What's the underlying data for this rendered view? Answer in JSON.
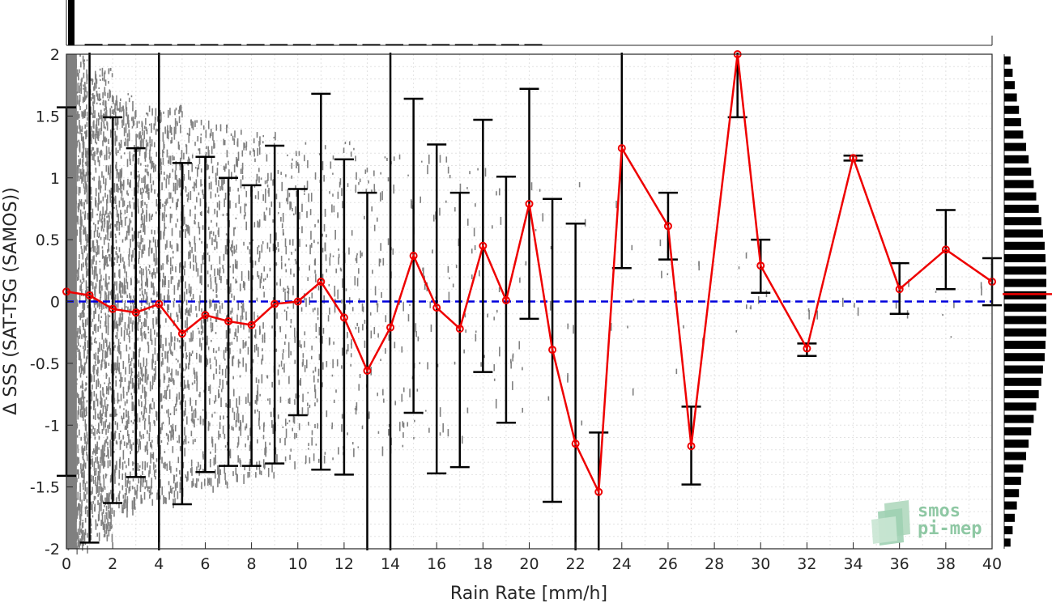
{
  "chart_data": {
    "type": "scatter",
    "xlabel": "Rain Rate [mm/h]",
    "ylabel": "Δ SSS (SAT-TSG (SAMOS))",
    "xlim": [
      0,
      40
    ],
    "ylim": [
      -2,
      2
    ],
    "x_ticks": [
      0,
      2,
      4,
      6,
      8,
      10,
      12,
      14,
      16,
      18,
      20,
      22,
      24,
      26,
      28,
      30,
      32,
      34,
      36,
      38,
      40
    ],
    "y_ticks": [
      2,
      1.5,
      1,
      0.5,
      0,
      -0.5,
      -1,
      -1.5,
      -2
    ],
    "y_tick_labels": [
      "2",
      "1.5",
      "1",
      "0.5",
      "0",
      "-0.5",
      "-1",
      "-1.5",
      "-2"
    ],
    "grid": true,
    "zero_line": {
      "y": 0,
      "color": "#0000dd",
      "style": "dashed"
    },
    "mean_series": {
      "color": "#ee0000",
      "x": [
        0,
        1,
        2,
        3,
        4,
        5,
        6,
        7,
        8,
        9,
        10,
        11,
        12,
        13,
        14,
        15,
        16,
        17,
        18,
        19,
        20,
        21,
        22,
        23,
        24,
        26,
        27,
        29,
        30,
        32,
        34,
        36,
        38,
        40
      ],
      "y": [
        0.08,
        0.05,
        -0.06,
        -0.09,
        -0.02,
        -0.26,
        -0.11,
        -0.16,
        -0.19,
        -0.02,
        0.0,
        0.16,
        -0.13,
        -0.56,
        -0.21,
        0.37,
        -0.05,
        -0.22,
        0.45,
        0.01,
        0.79,
        -0.39,
        -1.15,
        -1.54,
        1.24,
        0.61,
        -1.17,
        2.0,
        0.29,
        -0.38,
        1.16,
        0.1,
        0.42,
        0.16
      ]
    },
    "error_bars": {
      "color": "#000000",
      "x": [
        0,
        1,
        2,
        3,
        4,
        5,
        6,
        7,
        8,
        9,
        10,
        11,
        12,
        13,
        14,
        15,
        16,
        17,
        18,
        19,
        20,
        21,
        22,
        23,
        24,
        26,
        27,
        29,
        30,
        32,
        34,
        36,
        38,
        40
      ],
      "upper": [
        1.57,
        2.05,
        1.49,
        1.24,
        2.05,
        1.12,
        1.17,
        1.0,
        0.94,
        1.26,
        0.91,
        1.68,
        1.15,
        0.88,
        2.05,
        1.64,
        1.27,
        0.88,
        1.47,
        1.01,
        1.72,
        0.83,
        0.63,
        -1.06,
        2.05,
        0.88,
        -0.85,
        2.05,
        0.5,
        -0.34,
        1.18,
        0.31,
        0.74,
        0.35
      ],
      "lower": [
        -1.41,
        -1.95,
        -1.63,
        -1.42,
        -2.05,
        -1.64,
        -1.38,
        -1.33,
        -1.33,
        -1.31,
        -0.92,
        -1.36,
        -1.4,
        -2.05,
        -2.05,
        -0.9,
        -1.39,
        -1.34,
        -0.57,
        -0.98,
        -0.14,
        -1.62,
        -2.05,
        -2.05,
        0.27,
        0.34,
        -1.48,
        1.49,
        0.07,
        -0.44,
        1.14,
        -0.1,
        0.1,
        -0.03
      ]
    },
    "scatter_color": "#808080",
    "scatter_density": [
      {
        "x": 0.4,
        "spread": 2.0,
        "n": 900
      },
      {
        "x": 1.5,
        "spread": 1.9,
        "n": 700
      },
      {
        "x": 2.5,
        "spread": 1.7,
        "n": 500
      },
      {
        "x": 3.5,
        "spread": 1.6,
        "n": 420
      },
      {
        "x": 4.5,
        "spread": 1.6,
        "n": 330
      },
      {
        "x": 5.5,
        "spread": 1.5,
        "n": 260
      },
      {
        "x": 6.5,
        "spread": 1.5,
        "n": 220
      },
      {
        "x": 7.5,
        "spread": 1.4,
        "n": 180
      },
      {
        "x": 8.5,
        "spread": 1.4,
        "n": 150
      },
      {
        "x": 9.5,
        "spread": 1.3,
        "n": 120
      },
      {
        "x": 10.5,
        "spread": 1.3,
        "n": 100
      },
      {
        "x": 11.5,
        "spread": 1.3,
        "n": 80
      },
      {
        "x": 12.5,
        "spread": 1.3,
        "n": 60
      },
      {
        "x": 13.5,
        "spread": 1.2,
        "n": 45
      },
      {
        "x": 14.5,
        "spread": 1.2,
        "n": 35
      },
      {
        "x": 15.5,
        "spread": 1.2,
        "n": 28
      },
      {
        "x": 16.5,
        "spread": 1.2,
        "n": 22
      },
      {
        "x": 17.5,
        "spread": 1.1,
        "n": 18
      },
      {
        "x": 18.5,
        "spread": 1.1,
        "n": 14
      },
      {
        "x": 19.5,
        "spread": 1.0,
        "n": 10
      },
      {
        "x": 20.5,
        "spread": 1.0,
        "n": 8
      },
      {
        "x": 22.0,
        "spread": 1.0,
        "n": 8
      },
      {
        "x": 24.0,
        "spread": 0.9,
        "n": 6
      },
      {
        "x": 26.0,
        "spread": 0.6,
        "n": 5
      },
      {
        "x": 27.0,
        "spread": 0.4,
        "n": 4
      },
      {
        "x": 29.0,
        "spread": 0.4,
        "n": 4
      },
      {
        "x": 30.0,
        "spread": 0.3,
        "n": 4
      },
      {
        "x": 32.0,
        "spread": 0.1,
        "n": 3
      },
      {
        "x": 34.0,
        "spread": 0.05,
        "n": 3
      },
      {
        "x": 36.0,
        "spread": 0.3,
        "n": 4
      },
      {
        "x": 38.0,
        "spread": 0.3,
        "n": 4
      },
      {
        "x": 40.0,
        "spread": 0.2,
        "n": 3
      }
    ],
    "top_histogram": {
      "color": "#000000",
      "x_bins": [
        0,
        1,
        2,
        3,
        4,
        5,
        6,
        7,
        8,
        9,
        10,
        11,
        12,
        13,
        14,
        15,
        16,
        17,
        18,
        19,
        20
      ],
      "relative_counts": [
        1.0,
        0.03,
        0.02,
        0.015,
        0.012,
        0.01,
        0.01,
        0.008,
        0.007,
        0.006,
        0.005,
        0.005,
        0.004,
        0.004,
        0.003,
        0.003,
        0.003,
        0.002,
        0.002,
        0.002,
        0.002
      ]
    },
    "right_histogram": {
      "color": "#000000",
      "y_bins": [
        1.95,
        1.85,
        1.75,
        1.65,
        1.55,
        1.45,
        1.35,
        1.25,
        1.15,
        1.05,
        0.95,
        0.85,
        0.75,
        0.65,
        0.55,
        0.45,
        0.35,
        0.25,
        0.15,
        0.05,
        -0.05,
        -0.15,
        -0.25,
        -0.35,
        -0.45,
        -0.55,
        -0.65,
        -0.75,
        -0.85,
        -0.95,
        -1.05,
        -1.15,
        -1.25,
        -1.35,
        -1.45,
        -1.55,
        -1.65,
        -1.75,
        -1.85,
        -1.95
      ],
      "relative_counts": [
        0.15,
        0.2,
        0.25,
        0.3,
        0.35,
        0.4,
        0.45,
        0.52,
        0.58,
        0.64,
        0.7,
        0.76,
        0.82,
        0.88,
        0.92,
        0.96,
        0.98,
        1.0,
        1.0,
        1.0,
        1.0,
        1.0,
        1.0,
        0.98,
        0.96,
        0.92,
        0.88,
        0.82,
        0.76,
        0.7,
        0.64,
        0.58,
        0.52,
        0.45,
        0.4,
        0.35,
        0.3,
        0.25,
        0.2,
        0.15
      ],
      "mean_marker": {
        "y": 0.06,
        "color": "#ee0000"
      }
    }
  },
  "logo": {
    "line1": "smos",
    "line2": "pi-mep",
    "color": "#8fc8a4"
  }
}
